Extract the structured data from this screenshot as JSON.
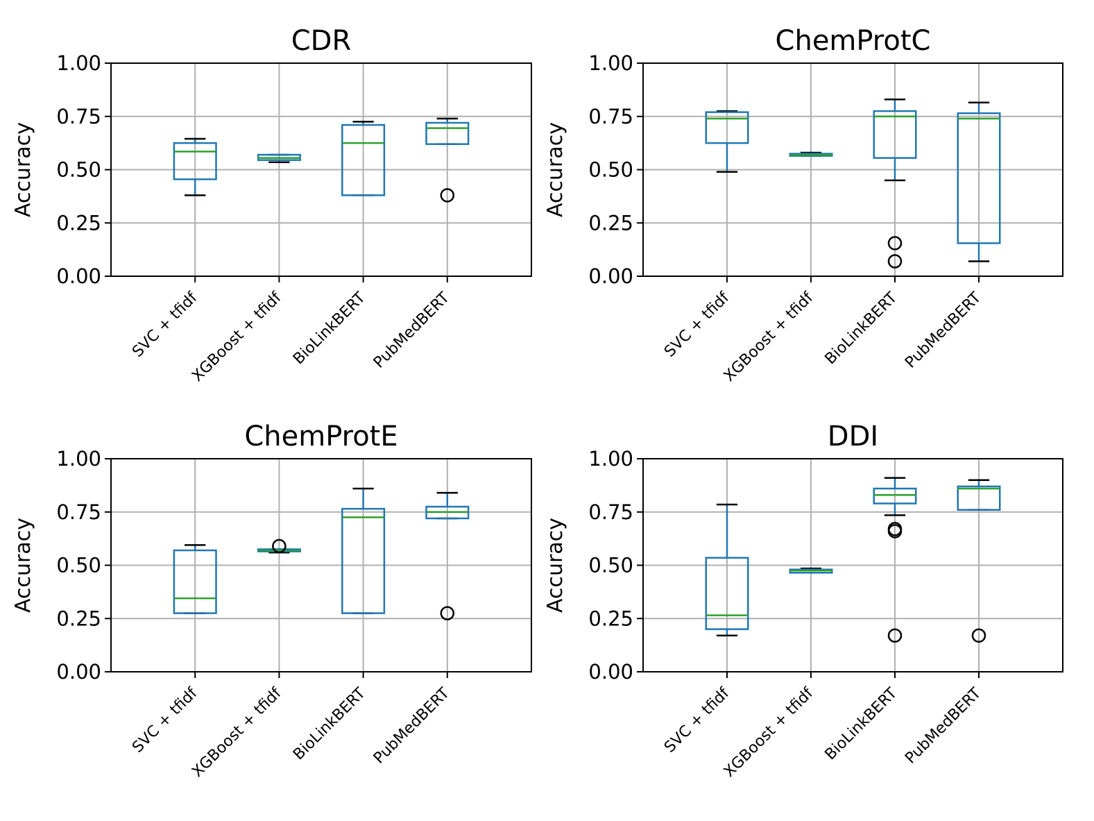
{
  "chart_data": [
    {
      "type": "box",
      "title": "CDR",
      "ylabel": "Accuracy",
      "xlabel": "",
      "ylim": [
        0,
        1
      ],
      "yticks": [
        "0.00",
        "0.25",
        "0.50",
        "0.75",
        "1.00"
      ],
      "grid": true,
      "categories": [
        "SVC + tfidf",
        "XGBoost + tfidf",
        "BioLinkBERT",
        "PubMedBERT"
      ],
      "boxes": [
        {
          "whisker_low": 0.38,
          "q1": 0.455,
          "median": 0.585,
          "q3": 0.625,
          "whisker_high": 0.645,
          "outliers": []
        },
        {
          "whisker_low": 0.535,
          "q1": 0.545,
          "median": 0.555,
          "q3": 0.57,
          "whisker_high": 0.57,
          "outliers": []
        },
        {
          "whisker_low": 0.38,
          "q1": 0.38,
          "median": 0.625,
          "q3": 0.71,
          "whisker_high": 0.725,
          "outliers": []
        },
        {
          "whisker_low": 0.62,
          "q1": 0.62,
          "median": 0.695,
          "q3": 0.72,
          "whisker_high": 0.74,
          "outliers": [
            0.38
          ]
        }
      ]
    },
    {
      "type": "box",
      "title": "ChemProtC",
      "ylabel": "Accuracy",
      "xlabel": "",
      "ylim": [
        0,
        1
      ],
      "yticks": [
        "0.00",
        "0.25",
        "0.50",
        "0.75",
        "1.00"
      ],
      "grid": true,
      "categories": [
        "SVC + tfidf",
        "XGBoost + tfidf",
        "BioLinkBERT",
        "PubMedBERT"
      ],
      "boxes": [
        {
          "whisker_low": 0.49,
          "q1": 0.625,
          "median": 0.74,
          "q3": 0.77,
          "whisker_high": 0.775,
          "outliers": []
        },
        {
          "whisker_low": 0.565,
          "q1": 0.565,
          "median": 0.57,
          "q3": 0.575,
          "whisker_high": 0.58,
          "outliers": []
        },
        {
          "whisker_low": 0.45,
          "q1": 0.555,
          "median": 0.75,
          "q3": 0.775,
          "whisker_high": 0.83,
          "outliers": [
            0.155,
            0.07
          ]
        },
        {
          "whisker_low": 0.07,
          "q1": 0.155,
          "median": 0.74,
          "q3": 0.765,
          "whisker_high": 0.815,
          "outliers": []
        }
      ]
    },
    {
      "type": "box",
      "title": "ChemProtE",
      "ylabel": "Accuracy",
      "xlabel": "",
      "ylim": [
        0,
        1
      ],
      "yticks": [
        "0.00",
        "0.25",
        "0.50",
        "0.75",
        "1.00"
      ],
      "grid": true,
      "categories": [
        "SVC + tfidf",
        "XGBoost + tfidf",
        "BioLinkBERT",
        "PubMedBERT"
      ],
      "boxes": [
        {
          "whisker_low": 0.275,
          "q1": 0.275,
          "median": 0.345,
          "q3": 0.57,
          "whisker_high": 0.595,
          "outliers": []
        },
        {
          "whisker_low": 0.56,
          "q1": 0.565,
          "median": 0.57,
          "q3": 0.575,
          "whisker_high": 0.575,
          "outliers": [
            0.59
          ]
        },
        {
          "whisker_low": 0.275,
          "q1": 0.275,
          "median": 0.725,
          "q3": 0.765,
          "whisker_high": 0.86,
          "outliers": []
        },
        {
          "whisker_low": 0.72,
          "q1": 0.72,
          "median": 0.75,
          "q3": 0.775,
          "whisker_high": 0.84,
          "outliers": [
            0.275
          ]
        }
      ]
    },
    {
      "type": "box",
      "title": "DDI",
      "ylabel": "Accuracy",
      "xlabel": "",
      "ylim": [
        0,
        1
      ],
      "yticks": [
        "0.00",
        "0.25",
        "0.50",
        "0.75",
        "1.00"
      ],
      "grid": true,
      "categories": [
        "SVC + tfidf",
        "XGBoost + tfidf",
        "BioLinkBERT",
        "PubMedBERT"
      ],
      "boxes": [
        {
          "whisker_low": 0.17,
          "q1": 0.2,
          "median": 0.265,
          "q3": 0.535,
          "whisker_high": 0.785,
          "outliers": []
        },
        {
          "whisker_low": 0.465,
          "q1": 0.465,
          "median": 0.475,
          "q3": 0.48,
          "whisker_high": 0.485,
          "outliers": []
        },
        {
          "whisker_low": 0.735,
          "q1": 0.79,
          "median": 0.83,
          "q3": 0.86,
          "whisker_high": 0.91,
          "outliers": [
            0.67,
            0.66,
            0.17
          ]
        },
        {
          "whisker_low": 0.76,
          "q1": 0.76,
          "median": 0.86,
          "q3": 0.87,
          "whisker_high": 0.9,
          "outliers": [
            0.17
          ]
        }
      ]
    }
  ]
}
